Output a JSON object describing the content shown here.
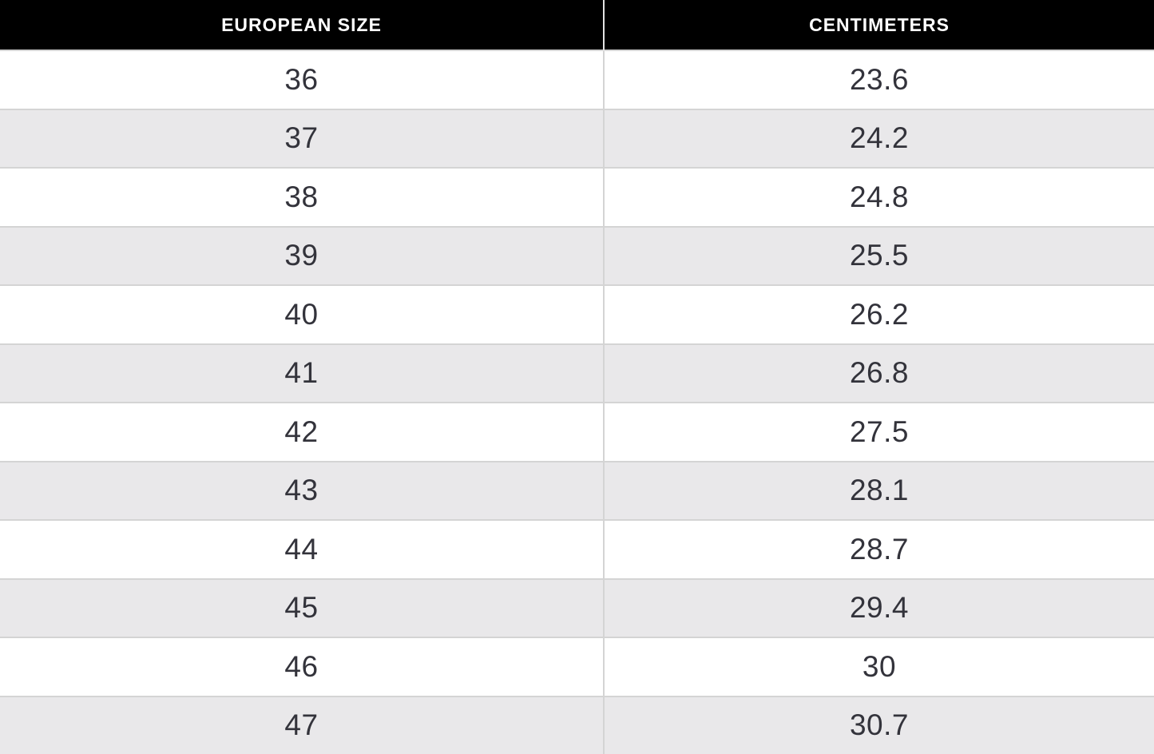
{
  "table": {
    "headers": {
      "size_label": "EUROPEAN SIZE",
      "cm_label": "CENTIMETERS"
    },
    "rows": [
      {
        "size": "36",
        "cm": "23.6"
      },
      {
        "size": "37",
        "cm": "24.2"
      },
      {
        "size": "38",
        "cm": "24.8"
      },
      {
        "size": "39",
        "cm": "25.5"
      },
      {
        "size": "40",
        "cm": "26.2"
      },
      {
        "size": "41",
        "cm": "26.8"
      },
      {
        "size": "42",
        "cm": "27.5"
      },
      {
        "size": "43",
        "cm": "28.1"
      },
      {
        "size": "44",
        "cm": "28.7"
      },
      {
        "size": "45",
        "cm": "29.4"
      },
      {
        "size": "46",
        "cm": "30"
      },
      {
        "size": "47",
        "cm": "30.7"
      }
    ]
  },
  "colors": {
    "header_background": "#000000",
    "header_text": "#ffffff",
    "alt_row_background": "#e9e8ea",
    "row_background": "#ffffff",
    "divider": "#d4d4d4",
    "body_text": "#33333b"
  },
  "chart_data": {
    "type": "table",
    "columns": [
      "EUROPEAN SIZE",
      "CENTIMETERS"
    ],
    "rows": [
      [
        36,
        23.6
      ],
      [
        37,
        24.2
      ],
      [
        38,
        24.8
      ],
      [
        39,
        25.5
      ],
      [
        40,
        26.2
      ],
      [
        41,
        26.8
      ],
      [
        42,
        27.5
      ],
      [
        43,
        28.1
      ],
      [
        44,
        28.7
      ],
      [
        45,
        29.4
      ],
      [
        46,
        30
      ],
      [
        47,
        30.7
      ]
    ]
  }
}
